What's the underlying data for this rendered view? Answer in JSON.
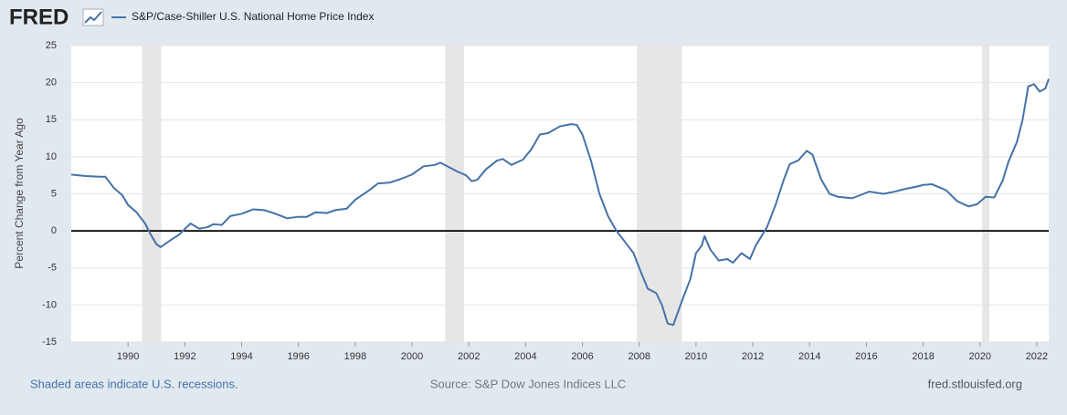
{
  "chart_data": {
    "type": "line",
    "logo": "FRED",
    "ylabel": "Percent Change from Year Ago",
    "footer_left": "Shaded areas indicate U.S. recessions.",
    "source": "Source: S&P Dow Jones Indices LLC",
    "footer_right": "fred.stlouisfed.org",
    "xlim": [
      1988,
      2022.42
    ],
    "xticks": [
      1990,
      1992,
      1994,
      1996,
      1998,
      2000,
      2002,
      2004,
      2006,
      2008,
      2010,
      2012,
      2014,
      2016,
      2018,
      2020,
      2022
    ],
    "ylim": [
      -15,
      25
    ],
    "yticks": [
      -15,
      -10,
      -5,
      0,
      5,
      10,
      15,
      20,
      25
    ],
    "grid": true,
    "recessions": [
      [
        1990.5,
        1991.17
      ],
      [
        2001.17,
        2001.83
      ],
      [
        2007.92,
        2009.5
      ],
      [
        2020.08,
        2020.33
      ]
    ],
    "x": [
      1988.0,
      1988.5,
      1989.0,
      1989.2,
      1989.5,
      1989.8,
      1990.0,
      1990.3,
      1990.6,
      1990.8,
      1991.0,
      1991.15,
      1991.4,
      1991.8,
      1992.2,
      1992.5,
      1992.8,
      1993.0,
      1993.3,
      1993.6,
      1994.0,
      1994.4,
      1994.8,
      1995.2,
      1995.6,
      1996.0,
      1996.3,
      1996.6,
      1997.0,
      1997.3,
      1997.7,
      1998.0,
      1998.5,
      1998.8,
      1999.2,
      1999.6,
      2000.0,
      2000.4,
      2000.8,
      2001.0,
      2001.3,
      2001.6,
      2001.9,
      2002.1,
      2002.3,
      2002.6,
      2003.0,
      2003.2,
      2003.5,
      2003.9,
      2004.2,
      2004.5,
      2004.8,
      2005.2,
      2005.6,
      2005.8,
      2006.0,
      2006.3,
      2006.6,
      2006.9,
      2007.2,
      2007.5,
      2007.8,
      2008.0,
      2008.3,
      2008.6,
      2008.8,
      2009.0,
      2009.2,
      2009.5,
      2009.8,
      2010.0,
      2010.2,
      2010.3,
      2010.5,
      2010.8,
      2011.1,
      2011.3,
      2011.6,
      2011.9,
      2012.1,
      2012.5,
      2012.8,
      2013.1,
      2013.3,
      2013.6,
      2013.9,
      2014.1,
      2014.4,
      2014.7,
      2015.0,
      2015.5,
      2015.9,
      2016.1,
      2016.6,
      2017.0,
      2017.3,
      2017.8,
      2018.0,
      2018.3,
      2018.8,
      2019.2,
      2019.6,
      2019.9,
      2020.2,
      2020.5,
      2020.8,
      2021.0,
      2021.3,
      2021.5,
      2021.7,
      2021.9,
      2022.1,
      2022.3,
      2022.42
    ],
    "series": [
      {
        "name": "S&P/Case-Shiller U.S. National Home Price Index",
        "color": "#4572a7",
        "values": [
          7.6,
          7.4,
          7.3,
          7.3,
          5.8,
          4.8,
          3.5,
          2.5,
          1.0,
          -0.5,
          -1.8,
          -2.2,
          -1.5,
          -0.5,
          1.0,
          0.3,
          0.5,
          0.9,
          0.8,
          2.0,
          2.3,
          2.9,
          2.8,
          2.3,
          1.7,
          1.9,
          1.9,
          2.5,
          2.4,
          2.8,
          3.0,
          4.2,
          5.5,
          6.4,
          6.5,
          7.0,
          7.6,
          8.7,
          8.9,
          9.2,
          8.6,
          8.0,
          7.5,
          6.7,
          6.9,
          8.3,
          9.5,
          9.7,
          8.9,
          9.6,
          11.0,
          13.0,
          13.2,
          14.1,
          14.4,
          14.3,
          13.0,
          9.5,
          5.0,
          2.0,
          0.0,
          -1.5,
          -3.0,
          -5.0,
          -7.8,
          -8.4,
          -10.0,
          -12.5,
          -12.7,
          -9.5,
          -6.5,
          -3.0,
          -2.0,
          -0.7,
          -2.5,
          -4.0,
          -3.8,
          -4.3,
          -3.0,
          -3.8,
          -2.0,
          0.5,
          3.5,
          7.0,
          9.0,
          9.5,
          10.8,
          10.3,
          7.0,
          5.0,
          4.6,
          4.4,
          5.0,
          5.3,
          5.0,
          5.3,
          5.6,
          6.0,
          6.2,
          6.3,
          5.5,
          4.0,
          3.3,
          3.6,
          4.6,
          4.5,
          6.8,
          9.3,
          12.0,
          15.0,
          19.5,
          19.8,
          18.8,
          19.2,
          20.5
        ]
      }
    ]
  }
}
